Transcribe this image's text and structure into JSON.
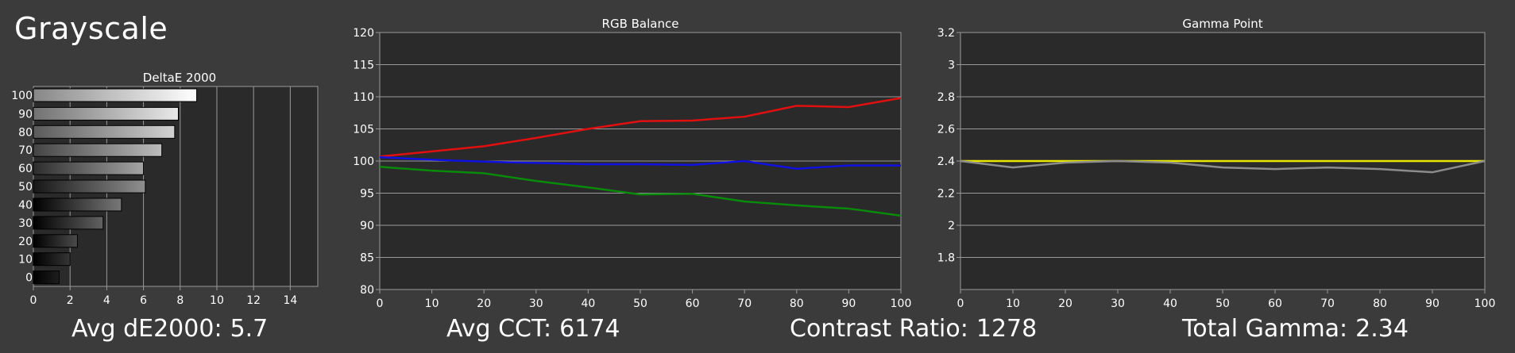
{
  "title": "Grayscale",
  "stats": {
    "deltae_label": "Avg dE2000:",
    "deltae_value": "5.7",
    "cct_label": "Avg CCT:",
    "cct_value": "6174",
    "contrast_label": "Contrast Ratio:",
    "contrast_value": "1278",
    "gamma_label": "Total Gamma:",
    "gamma_value": "2.34"
  },
  "colors": {
    "background": "#3b3b3b",
    "plot_bg": "#2a2a2a",
    "grid": "#9a9a9a",
    "red": "#e01010",
    "green": "#0a8a0a",
    "blue": "#1010e0",
    "gamma_target": "#e8e800",
    "gamma_measured": "#8c8c8c"
  },
  "chart_data": [
    {
      "type": "bar",
      "orientation": "horizontal",
      "title": "DeltaE 2000",
      "categories": [
        "100",
        "90",
        "80",
        "70",
        "60",
        "50",
        "40",
        "30",
        "20",
        "10",
        "0"
      ],
      "values": [
        8.9,
        7.9,
        7.7,
        7.0,
        6.0,
        6.1,
        4.8,
        3.8,
        2.4,
        2.0,
        1.4
      ],
      "xlim": [
        0,
        15.5
      ],
      "xticks": [
        "0",
        "2",
        "4",
        "6",
        "8",
        "10",
        "12",
        "14"
      ],
      "grid": true
    },
    {
      "type": "line",
      "title": "RGB Balance",
      "x": [
        0,
        10,
        20,
        30,
        40,
        50,
        60,
        70,
        80,
        90,
        100
      ],
      "series": [
        {
          "color": "red",
          "values": [
            100.7,
            101.5,
            102.3,
            103.6,
            105.0,
            106.2,
            106.3,
            106.9,
            108.6,
            108.4,
            109.8
          ]
        },
        {
          "color": "green",
          "values": [
            99.1,
            98.5,
            98.1,
            96.9,
            95.9,
            94.8,
            94.9,
            93.7,
            93.1,
            92.6,
            91.5
          ]
        },
        {
          "color": "blue",
          "values": [
            100.6,
            100.2,
            99.9,
            99.7,
            99.5,
            99.5,
            99.4,
            100.0,
            98.8,
            99.3,
            99.3
          ]
        }
      ],
      "xlim": [
        0,
        100
      ],
      "ylim": [
        80,
        120
      ],
      "xticks": [
        "0",
        "10",
        "20",
        "30",
        "40",
        "50",
        "60",
        "70",
        "80",
        "90",
        "100"
      ],
      "yticks": [
        "80",
        "85",
        "90",
        "95",
        "100",
        "105",
        "110",
        "115",
        "120"
      ],
      "grid": true
    },
    {
      "type": "line",
      "title": "Gamma Point",
      "x": [
        0,
        10,
        20,
        30,
        40,
        50,
        60,
        70,
        80,
        90,
        100
      ],
      "series": [
        {
          "color": "yellow",
          "values": [
            2.4,
            2.4,
            2.4,
            2.4,
            2.4,
            2.4,
            2.4,
            2.4,
            2.4,
            2.4,
            2.4
          ]
        },
        {
          "color": "gray",
          "values": [
            2.4,
            2.36,
            2.39,
            2.4,
            2.39,
            2.36,
            2.35,
            2.36,
            2.35,
            2.33,
            2.4
          ]
        }
      ],
      "xlim": [
        0,
        100
      ],
      "ylim": [
        1.6,
        3.2
      ],
      "xticks": [
        "0",
        "10",
        "20",
        "30",
        "40",
        "50",
        "60",
        "70",
        "80",
        "90",
        "100"
      ],
      "yticks": [
        "1.8",
        "2",
        "2.2",
        "2.4",
        "2.6",
        "2.8",
        "3",
        "3.2"
      ],
      "grid": true
    }
  ]
}
